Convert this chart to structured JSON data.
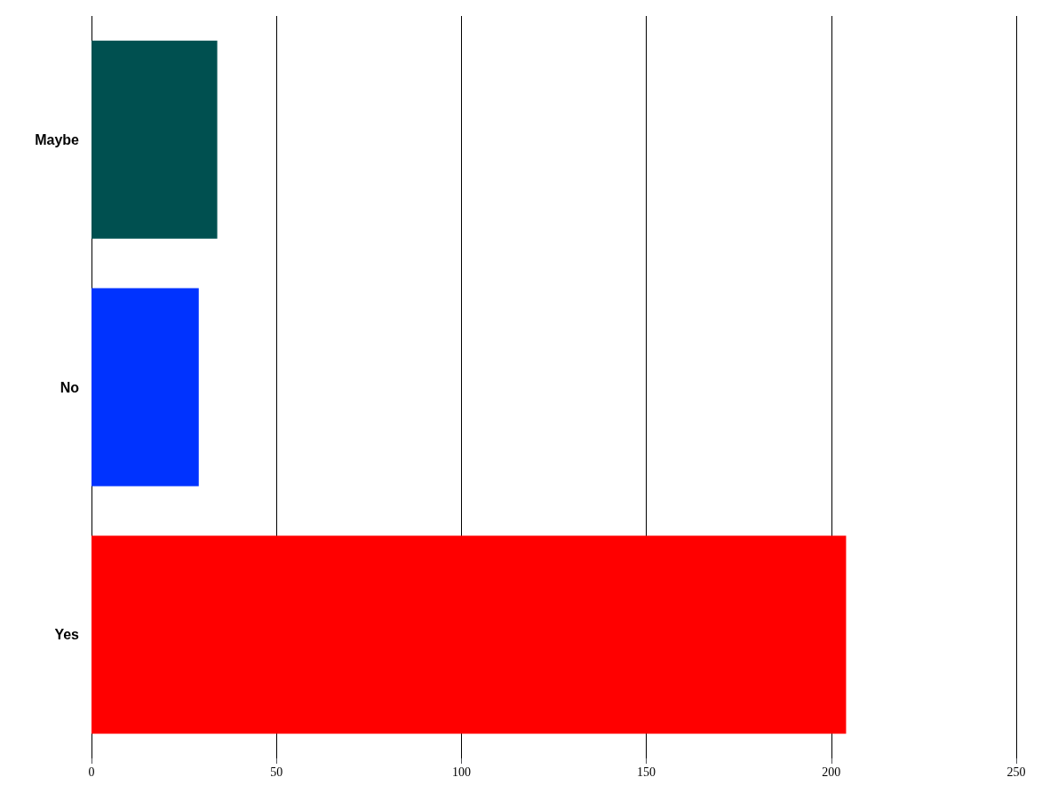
{
  "chart_data": {
    "type": "bar",
    "orientation": "horizontal",
    "categories": [
      "Maybe",
      "No",
      "Yes"
    ],
    "values": [
      34,
      29,
      204
    ],
    "colors": [
      "#005050",
      "#0033ff",
      "#ff0000"
    ],
    "xlim": [
      0,
      250
    ],
    "xticks": [
      0,
      50,
      100,
      150,
      200,
      250
    ],
    "grid": "x"
  }
}
